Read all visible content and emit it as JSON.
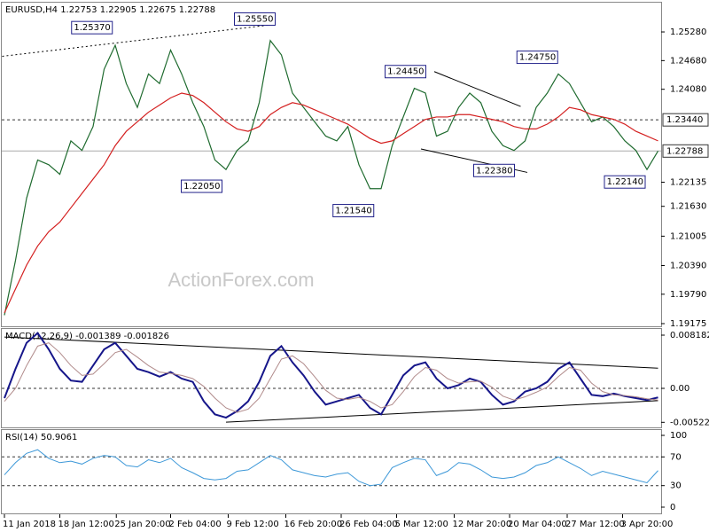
{
  "chart_data": [
    {
      "type": "line",
      "title": "EURUSD,H4  1.22753 1.22905 1.22675 1.22788",
      "watermark": "ActionForex.com",
      "xlim": [
        0,
        59
      ],
      "xticks": [
        {
          "value": 0,
          "label": "11 Jan 2018"
        },
        {
          "value": 5,
          "label": "18 Jan 12:00"
        },
        {
          "value": 10.1,
          "label": "25 Jan 20:00"
        },
        {
          "value": 15,
          "label": "2 Feb 04:00"
        },
        {
          "value": 20.2,
          "label": "9 Feb 12:00"
        },
        {
          "value": 25.4,
          "label": "16 Feb 20:00"
        },
        {
          "value": 30.4,
          "label": "26 Feb 04:00"
        },
        {
          "value": 35.4,
          "label": "5 Mar 12:00"
        },
        {
          "value": 40.6,
          "label": "12 Mar 20:00"
        },
        {
          "value": 45.6,
          "label": "20 Mar 04:00"
        },
        {
          "value": 50.8,
          "label": "27 Mar 12:00"
        },
        {
          "value": 55.8,
          "label": "3 Apr 20:00"
        }
      ],
      "ylim": [
        1.19119,
        1.258
      ],
      "yticks": [
        {
          "value": 1.2528,
          "label": "1.25280"
        },
        {
          "value": 1.2468,
          "label": "1.24680"
        },
        {
          "value": 1.2408,
          "label": "1.24080"
        },
        {
          "value": 1.22135,
          "label": "1.22135"
        },
        {
          "value": 1.2163,
          "label": "1.21630"
        },
        {
          "value": 1.21005,
          "label": "1.21005"
        },
        {
          "value": 1.2039,
          "label": "1.20390"
        },
        {
          "value": 1.1979,
          "label": "1.19790"
        },
        {
          "value": 1.19175,
          "label": "1.19175"
        }
      ],
      "series": [
        {
          "color": "#1f6b2f",
          "values": [
            1.1935,
            1.205,
            1.218,
            1.226,
            1.225,
            1.223,
            1.23,
            1.228,
            1.233,
            1.245,
            1.25,
            1.242,
            1.237,
            1.244,
            1.242,
            1.249,
            1.244,
            1.238,
            1.233,
            1.226,
            1.224,
            1.228,
            1.23,
            1.238,
            1.251,
            1.248,
            1.24,
            1.237,
            1.234,
            1.231,
            1.23,
            1.233,
            1.225,
            1.22,
            1.22,
            1.229,
            1.235,
            1.241,
            1.24,
            1.231,
            1.232,
            1.237,
            1.24,
            1.238,
            1.232,
            1.229,
            1.228,
            1.23,
            1.237,
            1.24,
            1.244,
            1.242,
            1.238,
            1.234,
            1.235,
            1.233,
            1.23,
            1.228,
            1.224,
            1.22788
          ]
        },
        {
          "color": "#d42020",
          "values": [
            1.194,
            1.199,
            1.204,
            1.208,
            1.211,
            1.213,
            1.216,
            1.219,
            1.222,
            1.225,
            1.229,
            1.232,
            1.234,
            1.236,
            1.2375,
            1.239,
            1.24,
            1.2395,
            1.238,
            1.236,
            1.234,
            1.2325,
            1.232,
            1.233,
            1.2355,
            1.237,
            1.238,
            1.2375,
            1.2365,
            1.2355,
            1.2345,
            1.2335,
            1.232,
            1.2305,
            1.2295,
            1.23,
            1.2315,
            1.233,
            1.2345,
            1.235,
            1.235,
            1.2355,
            1.2355,
            1.235,
            1.2345,
            1.234,
            1.233,
            1.2325,
            1.2325,
            1.2335,
            1.235,
            1.237,
            1.2365,
            1.2355,
            1.235,
            1.2345,
            1.2335,
            1.232,
            1.231,
            1.23
          ]
        }
      ],
      "levels": [
        {
          "value": 1.2344,
          "label": "1.23440",
          "dashed": true
        },
        {
          "value": 1.22788,
          "label": "1.22788",
          "dashed": false
        }
      ],
      "annotations": [
        {
          "x": 9.9,
          "value": 1.2537,
          "label": "1.25370"
        },
        {
          "x": 24.6,
          "value": 1.2555,
          "label": "1.25550"
        },
        {
          "x": 19.8,
          "value": 1.2205,
          "label": "1.22050"
        },
        {
          "x": 33.5,
          "value": 1.2154,
          "label": "1.21540"
        },
        {
          "x": 38.2,
          "value": 1.2445,
          "label": "1.24450"
        },
        {
          "x": 46.2,
          "value": 1.2238,
          "label": "1.22380"
        },
        {
          "x": 50.1,
          "value": 1.2475,
          "label": "1.24750"
        },
        {
          "x": 58,
          "value": 1.2214,
          "label": "1.22140"
        }
      ],
      "trendlines": [
        {
          "x": [
            -0.2,
            24.1
          ],
          "y": [
            1.2477,
            1.2543
          ],
          "dashed": true
        },
        {
          "x": [
            38.8,
            46.6
          ],
          "y": [
            1.2445,
            1.2372
          ],
          "dashed": false
        },
        {
          "x": [
            37.6,
            47.2
          ],
          "y": [
            1.2283,
            1.2234
          ],
          "dashed": false
        }
      ]
    },
    {
      "type": "line",
      "title": "MACD(12,26,9) -0.001389 -0.001826",
      "xlim": [
        0,
        59
      ],
      "ylim": [
        -0.006,
        0.009
      ],
      "yticks": [
        0.008182,
        {
          "value": 0,
          "label": "0.00"
        },
        -0.005223
      ],
      "series": [
        {
          "color": "#16168a",
          "width": 2,
          "values": [
            -0.0015,
            0.003,
            0.007,
            0.0085,
            0.006,
            0.003,
            0.0012,
            0.001,
            0.0035,
            0.006,
            0.007,
            0.005,
            0.003,
            0.0025,
            0.0018,
            0.0025,
            0.0015,
            0.001,
            -0.002,
            -0.004,
            -0.0045,
            -0.0035,
            -0.002,
            0.001,
            0.005,
            0.0065,
            0.004,
            0.002,
            -0.0005,
            -0.0025,
            -0.002,
            -0.0015,
            -0.001,
            -0.003,
            -0.004,
            -0.001,
            0.002,
            0.0035,
            0.004,
            0.0015,
            0,
            0.0005,
            0.0015,
            0.001,
            -0.001,
            -0.0025,
            -0.002,
            -0.0005,
            0,
            0.001,
            0.003,
            0.004,
            0.0015,
            -0.001,
            -0.0012,
            -0.0008,
            -0.0012,
            -0.0015,
            -0.0018,
            -0.0014
          ]
        },
        {
          "color": "#b08a8a",
          "width": 1,
          "values": [
            -0.002,
            0,
            0.0035,
            0.0065,
            0.007,
            0.0055,
            0.0035,
            0.002,
            0.0022,
            0.0038,
            0.0055,
            0.006,
            0.0048,
            0.0035,
            0.0025,
            0.0023,
            0.002,
            0.0015,
            0.0003,
            -0.0015,
            -0.003,
            -0.0037,
            -0.0032,
            -0.0015,
            0.0015,
            0.0045,
            0.005,
            0.0038,
            0.0018,
            -0.0003,
            -0.0015,
            -0.0017,
            -0.0014,
            -0.002,
            -0.003,
            -0.0025,
            -0.0005,
            0.0018,
            0.0032,
            0.0028,
            0.0015,
            0.0008,
            0.001,
            0.0011,
            0.0002,
            -0.0012,
            -0.0018,
            -0.0013,
            -0.0006,
            0.0002,
            0.0018,
            0.0032,
            0.0028,
            0.0008,
            -0.0005,
            -0.001,
            -0.0011,
            -0.0013,
            -0.0016,
            -0.0018
          ]
        }
      ],
      "levels": [
        {
          "value": 0,
          "dashed": true
        }
      ],
      "trendlines": [
        {
          "x": [
            0,
            59
          ],
          "y": [
            0.0079,
            0.0031
          ],
          "dashed": false
        },
        {
          "x": [
            20,
            59
          ],
          "y": [
            -0.0052,
            -0.0019
          ],
          "dashed": false
        }
      ]
    },
    {
      "type": "line",
      "title": "RSI(14) 50.9061",
      "xlim": [
        0,
        59
      ],
      "ylim": [
        -9.9,
        106.2
      ],
      "yticks": [
        100,
        70,
        30,
        0
      ],
      "series": [
        {
          "color": "#3d98d8",
          "width": 1,
          "values": [
            45,
            62,
            75,
            80,
            68,
            62,
            64,
            60,
            68,
            72,
            70,
            58,
            56,
            66,
            62,
            68,
            55,
            48,
            40,
            38,
            40,
            50,
            52,
            62,
            72,
            66,
            52,
            48,
            44,
            42,
            46,
            48,
            36,
            30,
            32,
            55,
            62,
            68,
            66,
            44,
            50,
            62,
            60,
            52,
            42,
            40,
            42,
            48,
            58,
            62,
            70,
            62,
            54,
            44,
            50,
            46,
            42,
            38,
            34,
            50.9061
          ]
        }
      ],
      "levels": [
        {
          "value": 70,
          "dashed": true
        },
        {
          "value": 30,
          "dashed": true
        }
      ]
    }
  ]
}
